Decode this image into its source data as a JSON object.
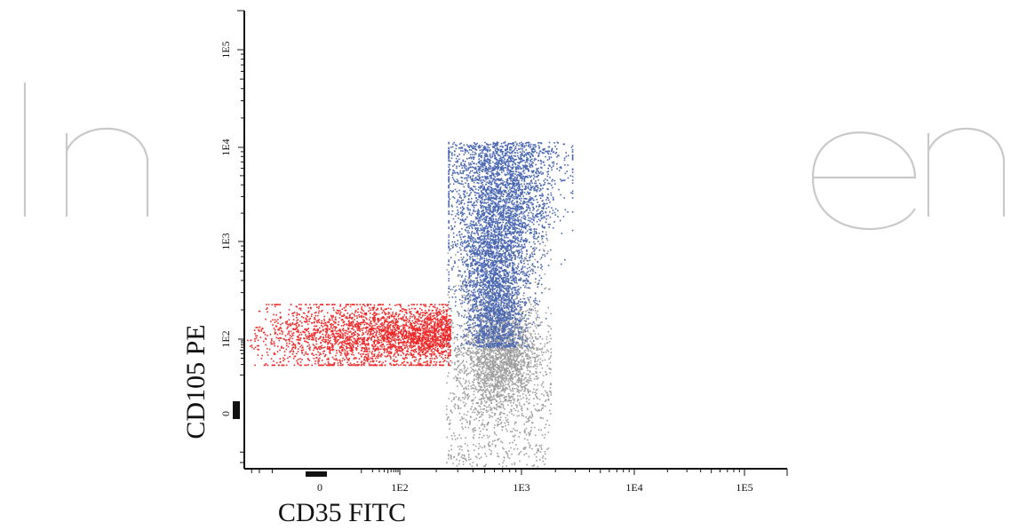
{
  "chart_data": {
    "type": "scatter",
    "title": "",
    "xlabel": "CD35 FITC",
    "ylabel": "CD105 PE",
    "x_ticks": [
      {
        "value": 0,
        "label": "0"
      },
      {
        "value": 100,
        "label": "1E2"
      },
      {
        "value": 1000,
        "label": "1E3"
      },
      {
        "value": 10000,
        "label": "1E4"
      },
      {
        "value": 100000,
        "label": "1E5"
      }
    ],
    "y_ticks": [
      {
        "value": 0,
        "label": "0"
      },
      {
        "value": 100,
        "label": "1E2"
      },
      {
        "value": 1000,
        "label": "1E3"
      },
      {
        "value": 10000,
        "label": "1E4"
      },
      {
        "value": 100000,
        "label": "1E5"
      }
    ],
    "x_scale": "biexponential",
    "y_scale": "biexponential",
    "xlim": [
      -40,
      300000
    ],
    "ylim": [
      -30,
      300000
    ],
    "grid": false,
    "legend": "none",
    "watermark": "IntechOpen",
    "series": [
      {
        "color": "#ee2a2a",
        "point_count": 3000,
        "x_range": [
          -40,
          260
        ],
        "y_range": [
          20,
          230
        ],
        "y_center": 110
      },
      {
        "color": "#4a67b2",
        "point_count": 5200,
        "x_range": [
          250,
          2800
        ],
        "y_range": [
          60,
          11500
        ],
        "center": {
          "x": 700,
          "y": 3500
        }
      },
      {
        "color": "#9e9e9e",
        "point_count": 3000,
        "x_range": [
          240,
          1800
        ],
        "y_range": [
          -25,
          1500
        ],
        "center": {
          "x": 650,
          "y": 35
        }
      }
    ]
  }
}
